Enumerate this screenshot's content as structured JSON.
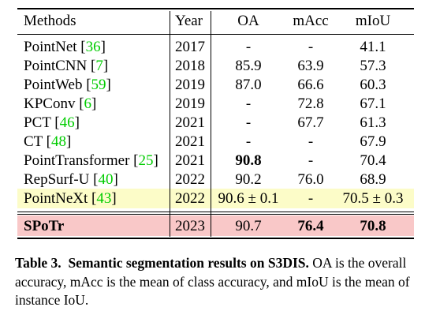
{
  "table": {
    "headers": {
      "methods": "Methods",
      "year": "Year",
      "oa": "OA",
      "macc": "mAcc",
      "miou": "mIoU"
    },
    "rows": [
      {
        "method": "PointNet",
        "cite": "36",
        "year": "2017",
        "oa": "-",
        "macc": "-",
        "miou": "41.1"
      },
      {
        "method": "PointCNN",
        "cite": "7",
        "year": "2018",
        "oa": "85.9",
        "macc": "63.9",
        "miou": "57.3"
      },
      {
        "method": "PointWeb",
        "cite": "59",
        "year": "2019",
        "oa": "87.0",
        "macc": "66.6",
        "miou": "60.3"
      },
      {
        "method": "KPConv",
        "cite": "6",
        "year": "2019",
        "oa": "-",
        "macc": "72.8",
        "miou": "67.1"
      },
      {
        "method": "PCT",
        "cite": "46",
        "year": "2021",
        "oa": "-",
        "macc": "67.7",
        "miou": "61.3"
      },
      {
        "method": "CT",
        "cite": "48",
        "year": "2021",
        "oa": "-",
        "macc": "-",
        "miou": "67.9"
      },
      {
        "method": "PointTransformer",
        "cite": "25",
        "year": "2021",
        "oa": "90.8",
        "macc": "-",
        "miou": "70.4"
      },
      {
        "method": "RepSurf-U",
        "cite": "40",
        "year": "2022",
        "oa": "90.2",
        "macc": "76.0",
        "miou": "68.9"
      },
      {
        "method": "PointNeXt",
        "cite": "43",
        "year": "2022",
        "oa": "90.6 ± 0.1",
        "macc": "-",
        "miou": "70.5 ± 0.3"
      }
    ],
    "ours": {
      "method": "SPoTr",
      "year": "2023",
      "oa": "90.7",
      "macc": "76.4",
      "miou": "70.8"
    },
    "colors": {
      "citation": "#00cc00",
      "pointnext_row": "#fcfcc8",
      "ours_row": "#f9c8c8"
    }
  },
  "caption": {
    "label": "Table 3.",
    "title": "Semantic segmentation results on S3DIS.",
    "text": "OA is the overall accuracy, mAcc is the mean of class accuracy, and mIoU is the mean of instance IoU."
  }
}
